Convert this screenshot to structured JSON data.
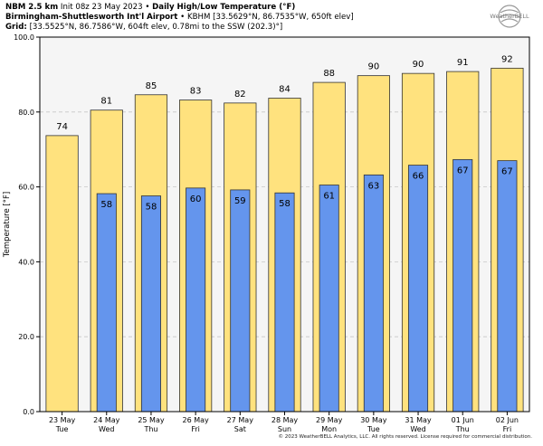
{
  "header": {
    "model": "NBM 2.5 km",
    "init": "Init 08z 23 May 2023",
    "product": "Daily High/Low Temperature (°F)",
    "station_name": "Birmingham-Shuttlesworth Int'l Airport",
    "station_meta": "KBHM [33.5629°N, 86.7535°W, 650ft elev]",
    "grid_label": "Grid:",
    "grid_meta": "[33.5525°N, 86.7586°W, 604ft elev, 0.78mi to the SSW (202.3)°]",
    "sep": "•"
  },
  "logo": {
    "text": "WeatherBELL",
    "icon": "globe-swirl-icon"
  },
  "footer": "© 2023 WeatherBELL Analytics, LLC. All rights reserved. License required for commercial distribution.",
  "chart_data": {
    "type": "bar",
    "ylabel": "Temperature [°F]",
    "ylim": [
      0,
      100
    ],
    "yticks": [
      "0.0",
      "20.0",
      "40.0",
      "60.0",
      "80.0",
      "100.0"
    ],
    "grid": true,
    "categories": [
      [
        "23 May",
        "Tue"
      ],
      [
        "24 May",
        "Wed"
      ],
      [
        "25 May",
        "Thu"
      ],
      [
        "26 May",
        "Fri"
      ],
      [
        "27 May",
        "Sat"
      ],
      [
        "28 May",
        "Sun"
      ],
      [
        "29 May",
        "Mon"
      ],
      [
        "30 May",
        "Tue"
      ],
      [
        "31 May",
        "Wed"
      ],
      [
        "01 Jun",
        "Thu"
      ],
      [
        "02 Jun",
        "Fri"
      ]
    ],
    "series": [
      {
        "values": [
          73.7,
          80.5,
          84.6,
          83.2,
          82.4,
          83.7,
          87.9,
          89.7,
          90.3,
          90.8,
          91.7
        ],
        "labels": [
          "74",
          "81",
          "85",
          "83",
          "82",
          "84",
          "88",
          "90",
          "90",
          "91",
          "92"
        ],
        "color": "#ffe27e"
      },
      {
        "values": [
          null,
          58.2,
          57.6,
          59.7,
          59.2,
          58.4,
          60.5,
          63.2,
          65.8,
          67.3,
          67.0
        ],
        "labels": [
          null,
          "58",
          "58",
          "60",
          "59",
          "58",
          "61",
          "63",
          "66",
          "67",
          "67"
        ],
        "color": "#6495ed"
      }
    ]
  }
}
